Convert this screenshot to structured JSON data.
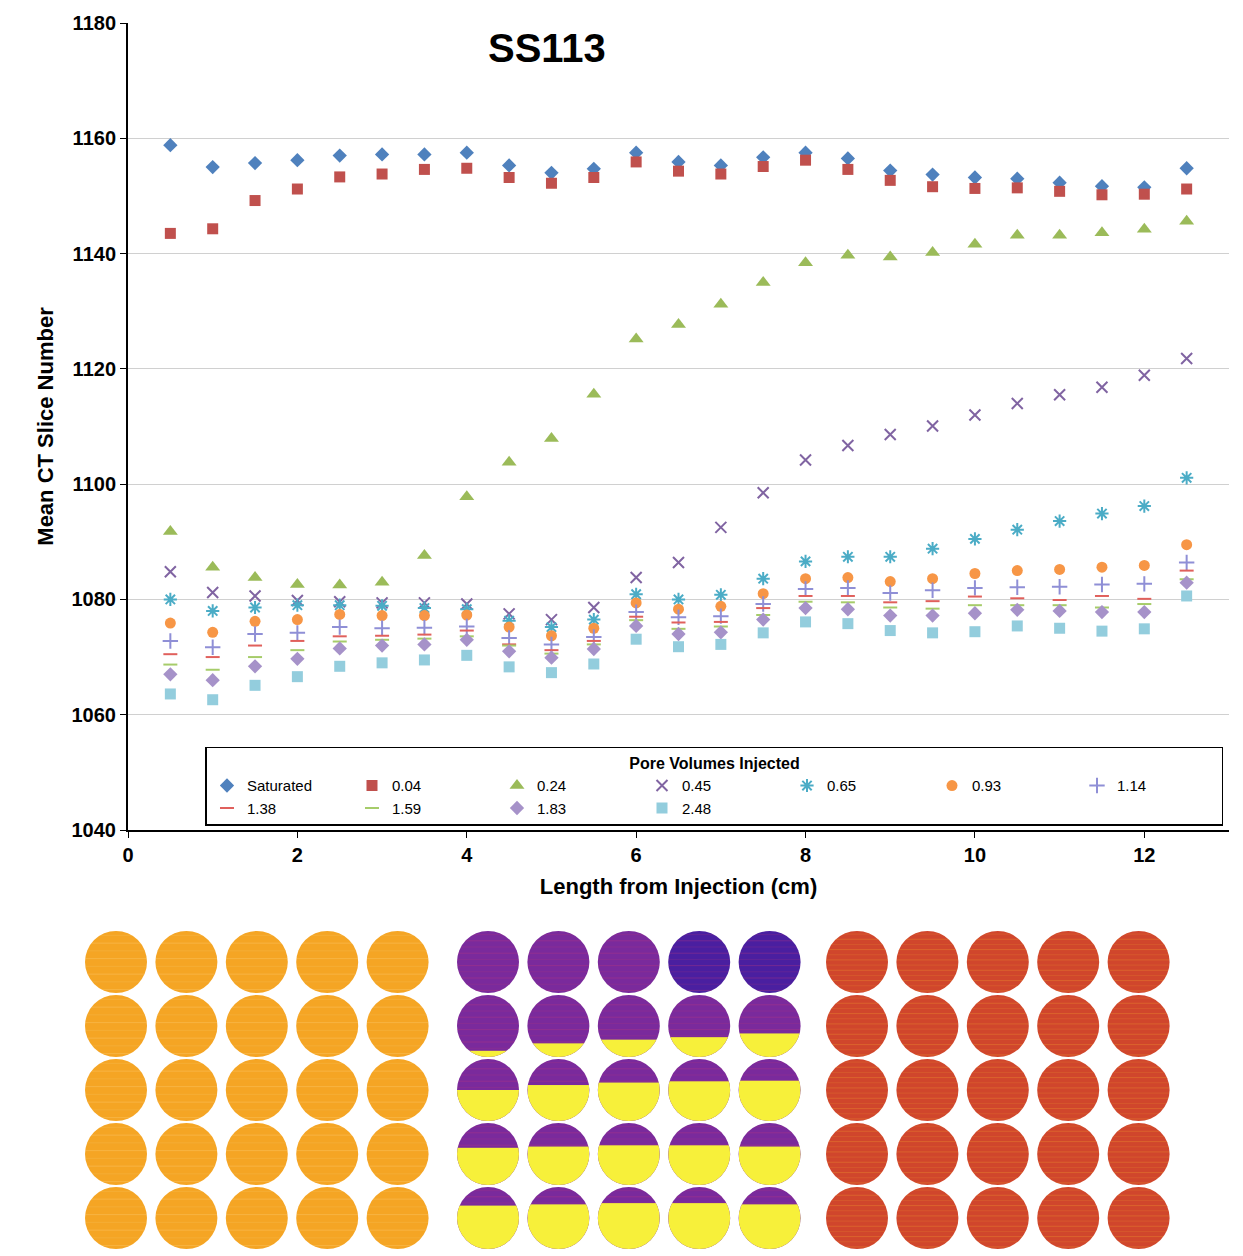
{
  "chart_data": {
    "type": "scatter",
    "title": "SS113",
    "x_label": "Length from Injection (cm)",
    "y_label": "Mean CT Slice Number",
    "legend_title": "Pore Volumes Injected",
    "legend": "bottom right",
    "grid": true,
    "xlim": [
      0,
      13
    ],
    "xticks": [
      0,
      2,
      4,
      6,
      8,
      10,
      12
    ],
    "ylim": [
      1040,
      1180
    ],
    "yticks": [
      1040,
      1060,
      1080,
      1100,
      1120,
      1140,
      1160,
      1180
    ],
    "x": [
      0.5,
      1,
      1.5,
      2,
      2.5,
      3,
      3.5,
      4,
      4.5,
      5,
      5.5,
      6,
      6.5,
      7,
      7.5,
      8,
      8.5,
      9,
      9.5,
      10,
      10.5,
      11,
      11.5,
      12,
      12.5
    ],
    "series": [
      {
        "name": "Saturated",
        "color": "#4f81bd",
        "marker": "diamond",
        "values": [
          1158.8,
          1155,
          1155.7,
          1156.2,
          1157,
          1157.2,
          1157.2,
          1157.5,
          1155.3,
          1154,
          1154.7,
          1157.5,
          1155.9,
          1155.3,
          1156.7,
          1157.5,
          1156.5,
          1154.4,
          1153.7,
          1153.2,
          1153,
          1152.3,
          1151.7,
          1151.5,
          1154.8
        ]
      },
      {
        "name": "0.04",
        "color": "#c0504d",
        "marker": "square",
        "values": [
          1143.5,
          1144.3,
          1149.2,
          1151.2,
          1153.3,
          1153.8,
          1154.6,
          1154.8,
          1153.2,
          1152.2,
          1153.2,
          1155.9,
          1154.3,
          1153.8,
          1155.1,
          1156.2,
          1154.6,
          1152.7,
          1151.6,
          1151.3,
          1151.4,
          1150.8,
          1150.2,
          1150.3,
          1151.2
        ]
      },
      {
        "name": "0.24",
        "color": "#9bbb59",
        "marker": "triangle-up",
        "values": [
          1091.8,
          1085.6,
          1083.8,
          1082.6,
          1082.5,
          1083,
          1087.6,
          1097.8,
          1103.8,
          1107.9,
          1115.6,
          1125.2,
          1127.7,
          1131.2,
          1135,
          1138.4,
          1139.7,
          1139.4,
          1140.2,
          1141.6,
          1143.2,
          1143.2,
          1143.6,
          1144.2,
          1145.6
        ]
      },
      {
        "name": "0.45",
        "color": "#8064a2",
        "marker": "x-thin",
        "values": [
          1084.8,
          1081.2,
          1080.6,
          1079.8,
          1079.6,
          1079.4,
          1079.4,
          1079.2,
          1077.5,
          1076.5,
          1078.6,
          1083.8,
          1086.4,
          1092.5,
          1098.5,
          1104.2,
          1106.7,
          1108.6,
          1110.1,
          1112,
          1114,
          1115.5,
          1116.8,
          1118.9,
          1121.8
        ]
      },
      {
        "name": "0.65",
        "color": "#4bacc6",
        "marker": "asterisk",
        "values": [
          1080,
          1078,
          1078.6,
          1079,
          1079,
          1078.9,
          1078.5,
          1078.3,
          1076.3,
          1075.2,
          1076.5,
          1080.9,
          1080,
          1080.8,
          1083.6,
          1086.6,
          1087.4,
          1087.4,
          1088.8,
          1090.5,
          1092.1,
          1093.6,
          1094.9,
          1096.2,
          1101.1
        ]
      },
      {
        "name": "0.93",
        "color": "#f79646",
        "marker": "circle",
        "values": [
          1075.9,
          1074.3,
          1076.2,
          1076.5,
          1077.4,
          1077.2,
          1077.2,
          1077.3,
          1075.2,
          1073.7,
          1075,
          1079.4,
          1078.3,
          1078.8,
          1081,
          1083.6,
          1083.8,
          1083.1,
          1083.6,
          1084.5,
          1085,
          1085.2,
          1085.6,
          1085.9,
          1089.5
        ]
      },
      {
        "name": "1.14",
        "color": "#8f8fd6",
        "marker": "cross-thin",
        "values": [
          1072.8,
          1071.7,
          1074,
          1074.2,
          1075.2,
          1075,
          1075.1,
          1075.3,
          1073.3,
          1072.2,
          1073.5,
          1077.8,
          1076.9,
          1077.1,
          1079.2,
          1081.8,
          1082,
          1081.1,
          1081.6,
          1082,
          1082.1,
          1082.2,
          1082.6,
          1082.7,
          1086.4
        ]
      },
      {
        "name": "1.38",
        "color": "#e0605c",
        "marker": "line-ew",
        "values": [
          1070.5,
          1070,
          1072,
          1072.8,
          1073.6,
          1073.7,
          1073.9,
          1074.6,
          1072.2,
          1071.2,
          1072.8,
          1077,
          1076,
          1076.1,
          1078.5,
          1080.6,
          1080.6,
          1079.5,
          1079.7,
          1080.5,
          1080.2,
          1079.9,
          1080.6,
          1080.1,
          1085
        ]
      },
      {
        "name": "1.59",
        "color": "#a6cc6a",
        "marker": "line-ew",
        "values": [
          1068.7,
          1067.8,
          1070,
          1071.2,
          1072.7,
          1073,
          1073.2,
          1073.6,
          1072,
          1070.6,
          1072.2,
          1076.4,
          1074.9,
          1075.3,
          1077.3,
          1079.6,
          1079.5,
          1078.6,
          1078.4,
          1079,
          1079,
          1079,
          1078.6,
          1079.2,
          1083.5
        ]
      },
      {
        "name": "1.83",
        "color": "#a692c9",
        "marker": "diamond",
        "values": [
          1067,
          1066,
          1068.4,
          1069.7,
          1071.5,
          1072,
          1072.2,
          1073,
          1071,
          1069.9,
          1071.4,
          1075.4,
          1074,
          1074.3,
          1076.5,
          1078.5,
          1078.3,
          1077.2,
          1077.2,
          1077.6,
          1078.2,
          1078,
          1077.8,
          1077.8,
          1082.9
        ]
      },
      {
        "name": "2.48",
        "color": "#93cddd",
        "marker": "square",
        "values": [
          1063.6,
          1062.6,
          1065.1,
          1066.6,
          1068.4,
          1069,
          1069.5,
          1070.3,
          1068.3,
          1067.3,
          1068.8,
          1073.1,
          1071.8,
          1072.2,
          1074.2,
          1076.1,
          1075.8,
          1074.6,
          1074.2,
          1074.4,
          1075.4,
          1075,
          1074.5,
          1074.9,
          1080.6
        ]
      }
    ]
  }
}
